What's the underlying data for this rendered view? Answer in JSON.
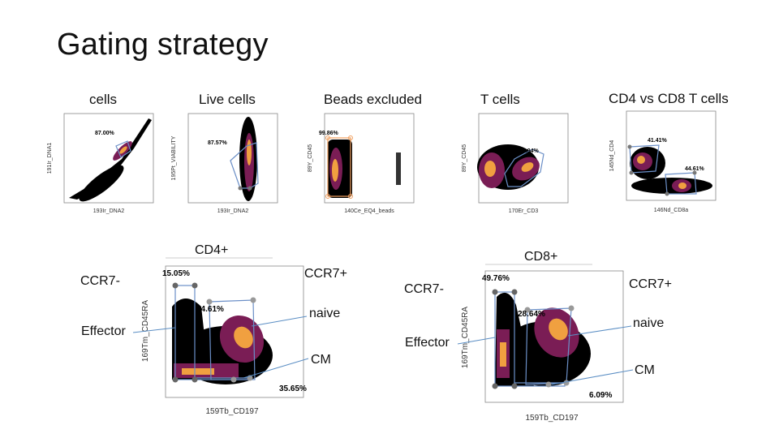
{
  "slide": {
    "title": "Gating strategy"
  },
  "top_plots": [
    {
      "title": "cells",
      "xlabel": "193Ir_DNA2",
      "ylabel": "191Ir_DNA1",
      "gates": [
        {
          "pct": "87.00%"
        }
      ]
    },
    {
      "title": "Live cells",
      "xlabel": "193Ir_DNA2",
      "ylabel": "195Pt_VIABILITY",
      "gates": [
        {
          "pct": "87.57%"
        }
      ]
    },
    {
      "title": "Beads excluded",
      "xlabel": "140Ce_EQ4_beads",
      "ylabel": "89Y_CD45",
      "gates": [
        {
          "pct": "99.86%"
        }
      ]
    },
    {
      "title": "T cells",
      "xlabel": "170Er_CD3",
      "ylabel": "89Y_CD45",
      "gates": [
        {
          "pct": "35.94%"
        }
      ]
    },
    {
      "title": "CD4 vs CD8 T cells",
      "xlabel": "146Nd_CD8a",
      "ylabel": "145Nd_CD4",
      "gates": [
        {
          "pct": "41.41%"
        },
        {
          "pct": "44.61%"
        }
      ]
    }
  ],
  "bottom_plots": [
    {
      "title": "CD4+",
      "xlabel": "159Tb_CD197",
      "ylabel": "169Tm_CD45RA",
      "gates": [
        {
          "pct": "15.05%"
        },
        {
          "pct": "24.61%"
        },
        {
          "pct": "35.65%"
        }
      ],
      "labels": {
        "ccr7_neg": "CCR7-",
        "ccr7_pos": "CCR7+",
        "effector": "Effector",
        "naive": "naive",
        "cm": "CM"
      }
    },
    {
      "title": "CD8+",
      "xlabel": "159Tb_CD197",
      "ylabel": "169Tm_CD45RA",
      "gates": [
        {
          "pct": "49.76%"
        },
        {
          "pct": "28.64%"
        },
        {
          "pct": "6.09%"
        }
      ],
      "labels": {
        "ccr7_neg": "CCR7-",
        "ccr7_pos": "CCR7+",
        "effector": "Effector",
        "naive": "naive",
        "cm": "CM"
      }
    }
  ],
  "colors": {
    "gate": "#6b8fc7",
    "gate_orange": "#f0a060",
    "vertex": "#777777",
    "connector": "#5b8ec4",
    "density_low": "#000000",
    "density_mid": "#8a1f5a",
    "density_high": "#f6a63a"
  }
}
